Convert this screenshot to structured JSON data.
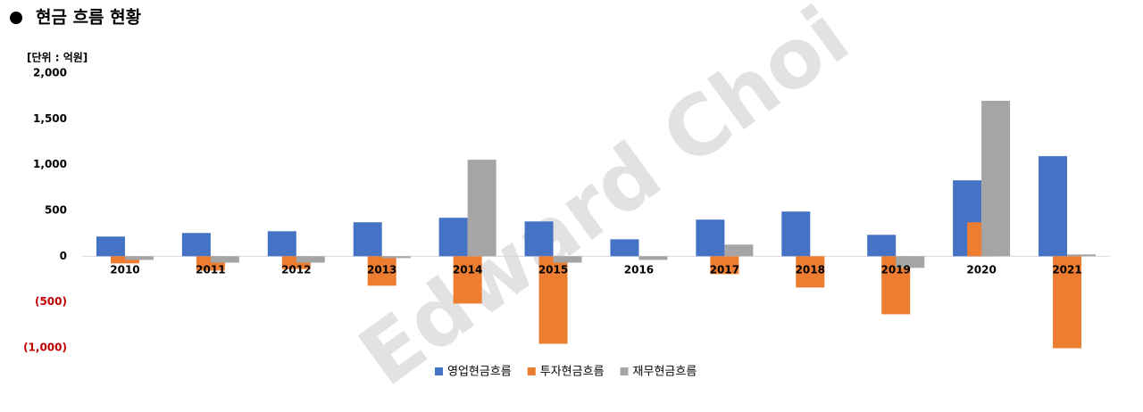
{
  "chart_data": {
    "type": "bar",
    "title": "현금 흐름 현황",
    "unit_label": "[단위 : 억원]",
    "watermark": "Edward Choi",
    "categories": [
      "2010",
      "2011",
      "2012",
      "2013",
      "2014",
      "2015",
      "2016",
      "2017",
      "2018",
      "2019",
      "2020",
      "2021"
    ],
    "series": [
      {
        "name": "영업현금흐름",
        "color": "#4472c4",
        "values": [
          215,
          254,
          273,
          371,
          420,
          380,
          185,
          400,
          488,
          234,
          829,
          1093
        ]
      },
      {
        "name": "투자현금흐름",
        "color": "#ed7d31",
        "values": [
          -78,
          -156,
          -140,
          -322,
          -517,
          -956,
          0,
          -195,
          -341,
          -634,
          371,
          -1005
        ]
      },
      {
        "name": "재무현금흐름",
        "color": "#a5a5a5",
        "values": [
          -40,
          -70,
          -70,
          -20,
          1054,
          -70,
          -40,
          127,
          0,
          -127,
          1698,
          20
        ]
      }
    ],
    "ylim": [
      -1000,
      2000
    ],
    "yticks": [
      {
        "value": -1000,
        "label": "(1,000)"
      },
      {
        "value": -500,
        "label": "(500)"
      },
      0,
      500,
      {
        "value": 1000,
        "label": "1,000"
      },
      {
        "value": 1500,
        "label": "1,500"
      },
      {
        "value": 2000,
        "label": "2,000"
      }
    ],
    "negative_tick_color": "#c00000",
    "grid": false,
    "legend": "bottom"
  }
}
